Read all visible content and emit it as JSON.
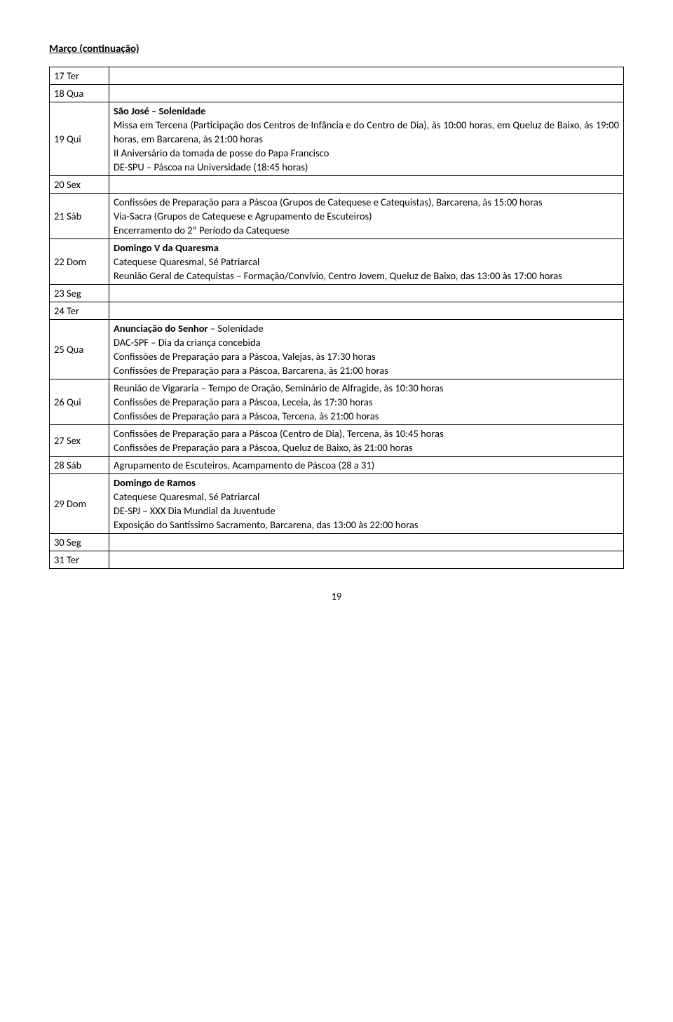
{
  "title": "Março (continuação)",
  "page_number": "19",
  "rows": [
    {
      "day": "17 Ter",
      "content_html": ""
    },
    {
      "day": "18 Qua",
      "content_html": ""
    },
    {
      "day": "19 Qui",
      "content_html": "<p class='bold'>São José – Solenidade</p><p class='justify'>Missa em Tercena (Participação dos Centros de Infância e do Centro de Dia), às 10:00 horas, em Queluz de Baixo, às 19:00 horas, em Barcarena, às 21:00 horas</p><p>II Aniversário da tomada de posse do Papa Francisco</p><p>DE-SPU – Páscoa na Universidade (18:45 horas)</p>"
    },
    {
      "day": "20 Sex",
      "content_html": ""
    },
    {
      "day": "21 Sáb",
      "content_html": "<p class='justify'>Confissões de Preparação para a Páscoa (Grupos de Catequese e Catequistas), Barcarena, às 15:00 horas</p><p>Via-Sacra (Grupos de Catequese e Agrupamento de Escuteiros)</p><p>Encerramento do 2º Período da Catequese</p>"
    },
    {
      "day": "22 Dom",
      "content_html": "<p class='bold'>Domingo V da Quaresma</p><p>Catequese Quaresmal, Sé Patriarcal</p><p class='justify'>Reunião Geral de Catequistas – Formação/Convívio, Centro Jovem, Queluz de Baixo, das 13:00 às 17:00 horas</p>"
    },
    {
      "day": "23 Seg",
      "content_html": ""
    },
    {
      "day": "24 Ter",
      "content_html": ""
    },
    {
      "day": "25 Qua",
      "content_html": "<p><span class='bold'>Anunciação do Senhor</span> – Solenidade</p><p>DAC-SPF – Dia da criança concebida</p><p>Confissões de Preparação para a Páscoa, Valejas, às 17:30 horas</p><p>Confissões de Preparação para a Páscoa, Barcarena, às 21:00 horas</p>"
    },
    {
      "day": "26 Qui",
      "content_html": "<p class='justify'>Reunião de Vigararia – Tempo de Oração, Seminário de Alfragide, às 10:30 horas</p><p>Confissões de Preparação para a Páscoa, Leceia, às 17:30 horas</p><p>Confissões de Preparação para a Páscoa, Tercena, às 21:00 horas</p>"
    },
    {
      "day": "27 Sex",
      "content_html": "<p class='justify'>Confissões de Preparação para a Páscoa (Centro de Dia), Tercena, às 10:45 horas</p><p class='justify'>Confissões de Preparação para a Páscoa, Queluz de Baixo, às 21:00 horas</p>"
    },
    {
      "day": "28 Sáb",
      "content_html": "<p>Agrupamento de Escuteiros, Acampamento de Páscoa (28 a 31)</p>"
    },
    {
      "day": "29 Dom",
      "content_html": "<p class='bold'>Domingo de Ramos</p><p>Catequese Quaresmal, Sé Patriarcal</p><p>DE-SPJ – XXX Dia Mundial da Juventude</p><p class='justify'>Exposição do Santíssimo Sacramento, Barcarena, das 13:00 às 22:00 horas</p>"
    },
    {
      "day": "30 Seg",
      "content_html": ""
    },
    {
      "day": "31 Ter",
      "content_html": ""
    }
  ]
}
